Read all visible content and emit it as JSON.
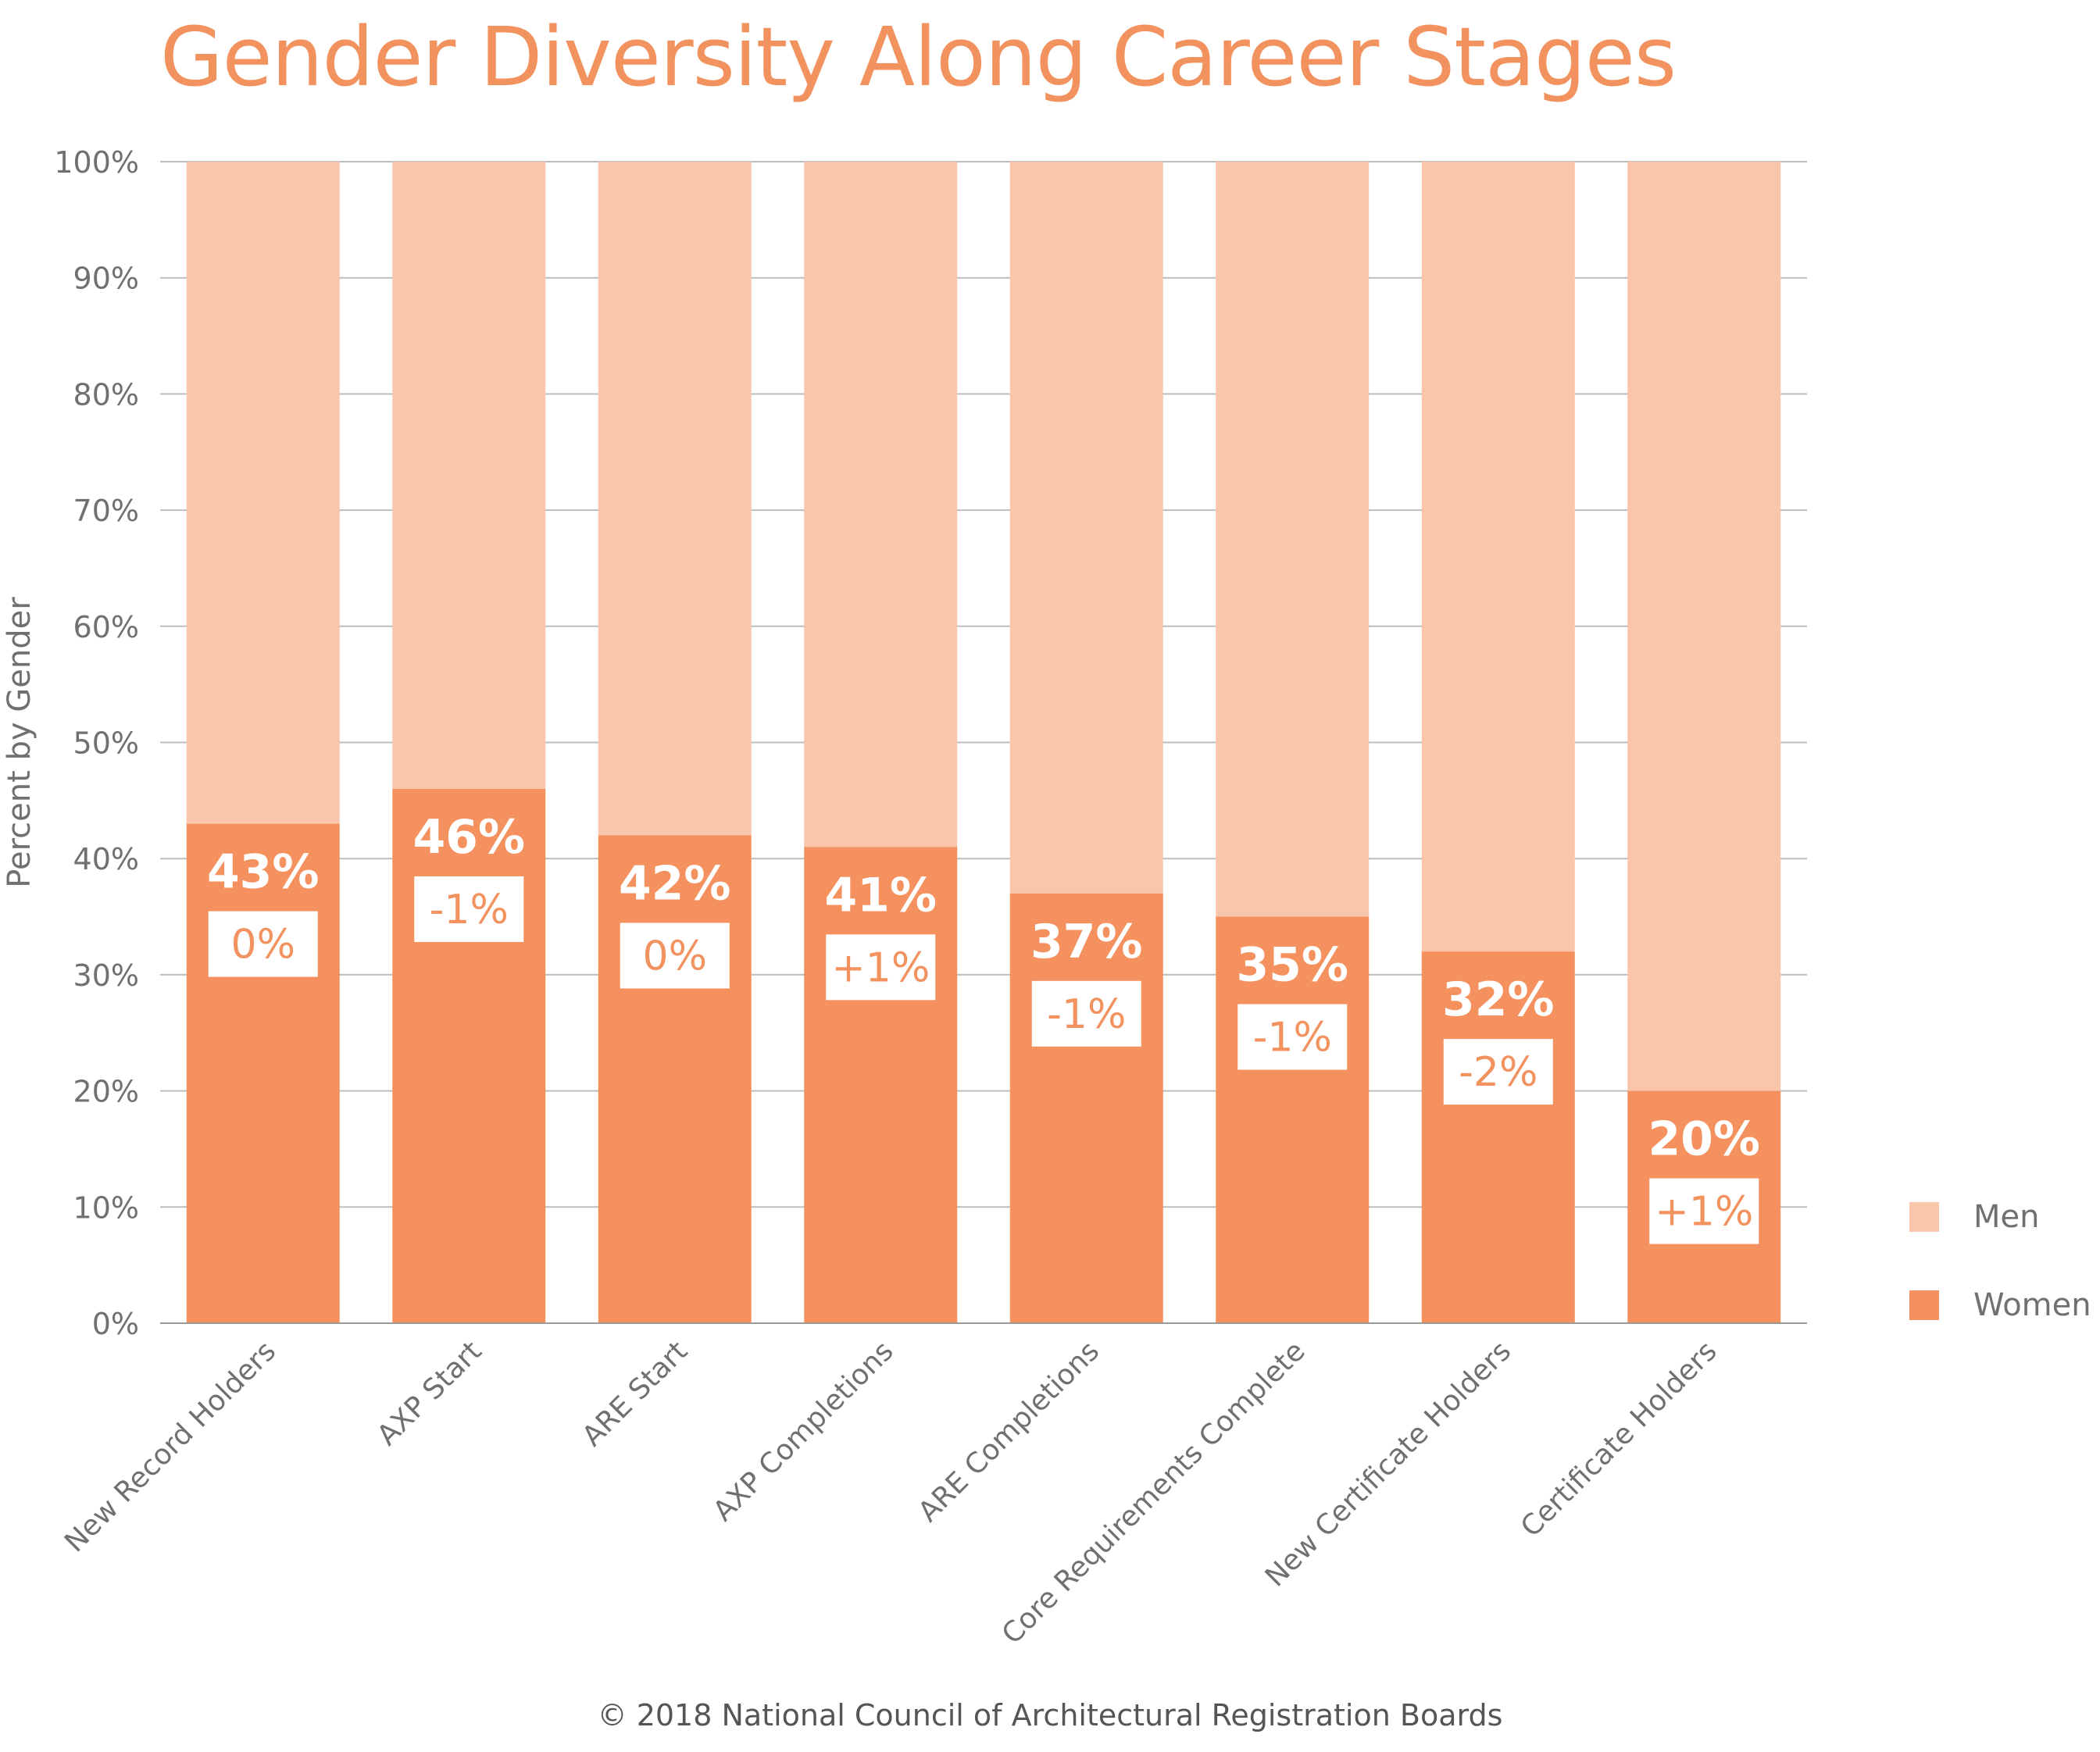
{
  "title": "Gender Diversity Along Career Stages",
  "footer": "© 2018 National Council of Architectural Registration Boards",
  "colors": {
    "women": "#f4915f",
    "men": "#f9c5ab",
    "title": "#f2925f",
    "axis_text": "#707070",
    "grid": "#bdbdbd",
    "badge_text": "#f2925f"
  },
  "chart_data": {
    "type": "bar",
    "stacked": true,
    "ylabel": "Percent by Gender",
    "xlabel": "",
    "ylim": [
      0,
      100
    ],
    "yticks": [
      0,
      10,
      20,
      30,
      40,
      50,
      60,
      70,
      80,
      90,
      100
    ],
    "ytick_labels": [
      "0%",
      "10%",
      "20%",
      "30%",
      "40%",
      "50%",
      "60%",
      "70%",
      "80%",
      "90%",
      "100%"
    ],
    "grid": true,
    "legend_position": "bottom-right",
    "categories": [
      "New Record Holders",
      "AXP Start",
      "ARE Start",
      "AXP Completions",
      "ARE Completions",
      "Core Requirements Complete",
      "New  Certificate Holders",
      "Certificate Holders"
    ],
    "series": [
      {
        "name": "Women",
        "values": [
          43,
          46,
          42,
          41,
          37,
          35,
          32,
          20
        ]
      },
      {
        "name": "Men",
        "values": [
          57,
          54,
          58,
          59,
          63,
          65,
          68,
          80
        ]
      }
    ],
    "data_labels": [
      "43%",
      "46%",
      "42%",
      "41%",
      "37%",
      "35%",
      "32%",
      "20%"
    ],
    "change_labels": [
      "0%",
      "-1%",
      "0%",
      "+1%",
      "-1%",
      "-1%",
      "-2%",
      "+1%"
    ]
  }
}
